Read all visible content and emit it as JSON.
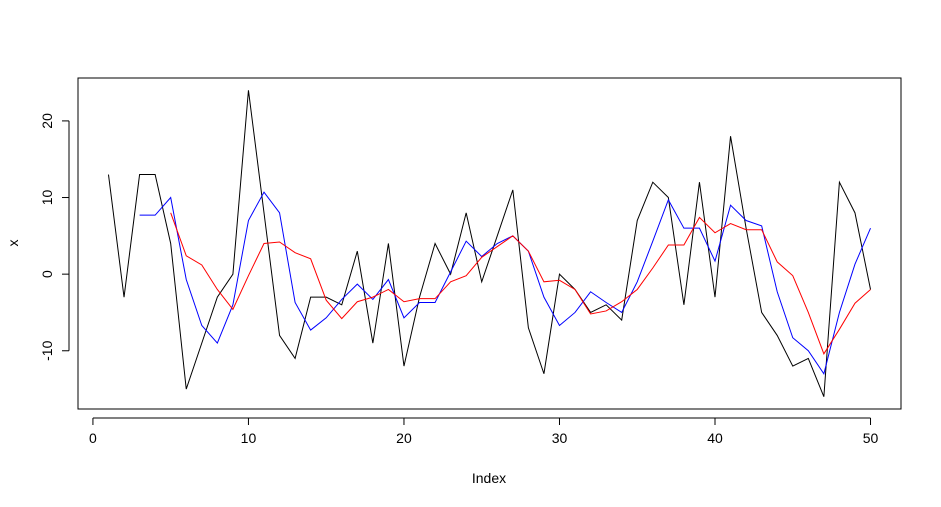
{
  "chart_data": {
    "type": "line",
    "title": "",
    "xlabel": "Index",
    "ylabel": "x",
    "xlim": [
      -0.96,
      51.96
    ],
    "ylim": [
      -17.6,
      25.6
    ],
    "x_ticks": [
      0,
      10,
      20,
      30,
      40,
      50
    ],
    "y_ticks": [
      -10,
      0,
      10,
      20
    ],
    "grid": false,
    "series": [
      {
        "color": "#000000",
        "start_index": 1,
        "values": [
          13,
          -3,
          13,
          13,
          4,
          -15,
          -9,
          -3,
          0,
          24,
          8,
          -8,
          -11,
          -3,
          -3,
          -4,
          3,
          -9,
          4,
          -12,
          -3,
          4,
          0,
          8,
          -1,
          5,
          11,
          -7,
          -13,
          0,
          -2,
          -5,
          -4,
          -6,
          7,
          12,
          10,
          -4,
          12,
          -3,
          18,
          6,
          -5,
          -8,
          -12,
          -11,
          -16,
          12,
          8,
          -2
        ]
      },
      {
        "color": "#0000ff",
        "start_index": 3,
        "values": [
          7.7,
          7.7,
          10,
          -0.7,
          -6.7,
          -9,
          -4,
          7,
          10.7,
          8,
          -3.7,
          -7.3,
          -5.7,
          -3.3,
          -1.3,
          -3.3,
          -0.7,
          -5.7,
          -3.7,
          -3.7,
          0.3,
          4.3,
          2.3,
          4,
          5,
          3,
          -3,
          -6.7,
          -5,
          -2.3,
          -3.7,
          -5,
          -1,
          4.3,
          9.7,
          6,
          6,
          1.7,
          9,
          7,
          6.3,
          -2.3,
          -8.3,
          -10,
          -13,
          -5,
          1.3,
          6
        ]
      },
      {
        "color": "#ff0000",
        "start_index": 5,
        "values": [
          8,
          2.4,
          1.2,
          -2,
          -4.6,
          -0.2,
          4,
          4.2,
          2.8,
          2,
          -3.4,
          -5.8,
          -3.6,
          -3,
          -2,
          -3.6,
          -3.2,
          -3.2,
          -1,
          -0.2,
          2.2,
          3.6,
          5,
          3,
          -1,
          -0.8,
          -2,
          -5.2,
          -4.8,
          -3.6,
          -2,
          0.8,
          3.8,
          3.8,
          7.4,
          5.4,
          6.6,
          5.8,
          5.8,
          1.6,
          -0.2,
          -5,
          -10.4,
          -7.2,
          -3.8,
          -2
        ]
      }
    ]
  }
}
